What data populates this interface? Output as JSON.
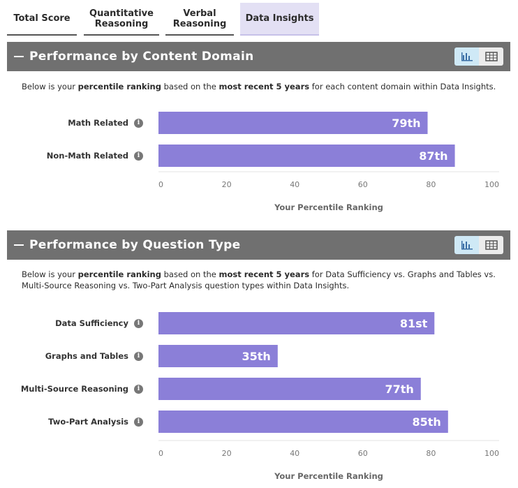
{
  "tabs": [
    {
      "lines": [
        "Total Score"
      ],
      "active": false
    },
    {
      "lines": [
        "Quantitative",
        "Reasoning"
      ],
      "active": false
    },
    {
      "lines": [
        "Verbal",
        "Reasoning"
      ],
      "active": false
    },
    {
      "lines": [
        "Data Insights"
      ],
      "active": true
    }
  ],
  "sections": [
    {
      "title": "Performance by Content Domain",
      "description_parts": [
        {
          "t": "Below is your ",
          "b": false
        },
        {
          "t": "percentile ranking",
          "b": true
        },
        {
          "t": " based on the ",
          "b": false
        },
        {
          "t": "most recent 5 years",
          "b": true
        },
        {
          "t": " for each content domain within Data Insights.",
          "b": false
        }
      ]
    },
    {
      "title": "Performance by Question Type",
      "description_parts": [
        {
          "t": "Below is your ",
          "b": false
        },
        {
          "t": "percentile ranking",
          "b": true
        },
        {
          "t": " based on the ",
          "b": false
        },
        {
          "t": "most recent 5 years",
          "b": true
        },
        {
          "t": " for Data Sufficiency vs. Graphs and Tables vs. Multi-Source Reasoning vs. Two-Part Analysis question types within Data Insights.",
          "b": false
        }
      ]
    }
  ],
  "colors": {
    "bar": "#8b7fd8",
    "header": "#707070",
    "toggle_active": "#cfe9f6"
  },
  "icons": {
    "collapse": "minus-icon",
    "chart_view": "bar-chart-icon",
    "table_view": "table-icon",
    "info": "info-icon"
  },
  "chart_data": [
    {
      "type": "bar",
      "orientation": "horizontal",
      "categories": [
        "Math Related",
        "Non-Math Related"
      ],
      "values": [
        79,
        87
      ],
      "value_labels": [
        "79th",
        "87th"
      ],
      "xlabel": "Your Percentile Ranking",
      "xlim": [
        0,
        100
      ],
      "xticks": [
        0,
        20,
        40,
        60,
        80,
        100
      ],
      "grid": false
    },
    {
      "type": "bar",
      "orientation": "horizontal",
      "categories": [
        "Data Sufficiency",
        "Graphs and Tables",
        "Multi-Source Reasoning",
        "Two-Part Analysis"
      ],
      "values": [
        81,
        35,
        77,
        85
      ],
      "value_labels": [
        "81st",
        "35th",
        "77th",
        "85th"
      ],
      "xlabel": "Your Percentile Ranking",
      "xlim": [
        0,
        100
      ],
      "xticks": [
        0,
        20,
        40,
        60,
        80,
        100
      ],
      "grid": false
    }
  ]
}
